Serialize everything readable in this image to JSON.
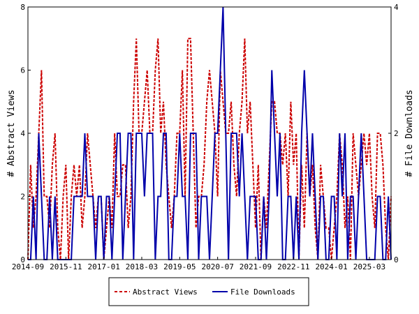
{
  "chart_data": {
    "type": "line",
    "title": "",
    "xlabel": "",
    "ylabel": "# Abstract Views",
    "y2label": "# File Downloads",
    "ylim": [
      0,
      8
    ],
    "y2lim": [
      0,
      4
    ],
    "yticks": [
      "0",
      "2",
      "4",
      "6",
      "8"
    ],
    "y2ticks": [
      "0",
      "2",
      "4"
    ],
    "xticks": [
      "2014-09",
      "2015-11",
      "2017-01",
      "2018-03",
      "2019-05",
      "2020-07",
      "2021-09",
      "2022-11",
      "2024-01",
      "2025-03"
    ],
    "xlim": [
      0,
      134
    ],
    "grid": false,
    "legend_position": "bottom-center",
    "colors": {
      "abstract_views": "#cc0000",
      "file_downloads": "#0000aa"
    },
    "series": [
      {
        "name": "Abstract Views",
        "style": "dashed",
        "axis": "left",
        "values": [
          0,
          3,
          1,
          2,
          4,
          6,
          2,
          2,
          1,
          3,
          4,
          1,
          0,
          2,
          3,
          0,
          2,
          3,
          2,
          3,
          1,
          2,
          4,
          3,
          2,
          1,
          2,
          2,
          0,
          1,
          2,
          1,
          4,
          2,
          2,
          3,
          3,
          1,
          2,
          5,
          7,
          4,
          4,
          5,
          6,
          4,
          4,
          6,
          7,
          4,
          5,
          3,
          2,
          1,
          2,
          4,
          4,
          6,
          2,
          7,
          7,
          4,
          1,
          2,
          2,
          3,
          5,
          6,
          5,
          4,
          2,
          6,
          5,
          4,
          4,
          5,
          3,
          2,
          4,
          5,
          7,
          4,
          5,
          3,
          1,
          3,
          0,
          2,
          1,
          3,
          5,
          5,
          4,
          4,
          3,
          4,
          2,
          5,
          3,
          4,
          0,
          3,
          1,
          4,
          2,
          3,
          1,
          0,
          3,
          2,
          1,
          1,
          0,
          1,
          2,
          4,
          3,
          1,
          2,
          0,
          4,
          3,
          2,
          3,
          4,
          3,
          4,
          2,
          1,
          4,
          4,
          3,
          1,
          0,
          2
        ]
      },
      {
        "name": "File Downloads",
        "style": "solid",
        "axis": "right",
        "values": [
          0,
          0,
          1,
          0,
          2,
          1,
          0,
          0,
          1,
          0,
          1,
          0,
          0,
          0,
          0,
          0,
          0,
          1,
          1,
          1,
          1,
          2,
          1,
          1,
          1,
          0,
          1,
          1,
          0,
          1,
          1,
          0,
          1,
          2,
          2,
          0,
          1,
          2,
          2,
          0,
          2,
          2,
          2,
          1,
          2,
          2,
          2,
          0,
          1,
          1,
          2,
          2,
          0,
          0,
          1,
          1,
          2,
          1,
          1,
          0,
          2,
          2,
          2,
          0,
          1,
          1,
          1,
          0,
          1,
          2,
          2,
          3,
          4,
          2,
          0,
          2,
          2,
          2,
          1,
          2,
          1,
          0,
          1,
          1,
          1,
          0,
          0,
          1,
          0,
          1,
          3,
          2,
          1,
          2,
          0,
          0,
          1,
          1,
          0,
          1,
          0,
          2,
          3,
          2,
          1,
          2,
          1,
          0,
          1,
          1,
          0,
          0,
          1,
          1,
          0,
          2,
          1,
          2,
          0,
          1,
          1,
          0,
          1,
          2,
          1,
          0,
          0,
          0,
          0,
          1,
          1,
          0,
          0,
          1,
          0
        ]
      }
    ]
  }
}
